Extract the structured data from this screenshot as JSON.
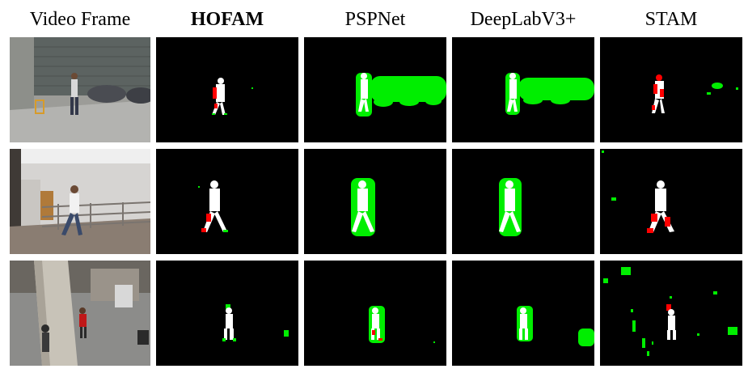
{
  "headers": {
    "video_frame": "Video Frame",
    "hofam": "HOFAM",
    "pspnet": "PSPNet",
    "deeplab": "DeepLabV3+",
    "stam": "STAM"
  },
  "colors": {
    "background": "#000000",
    "correct": "#ffffff",
    "missed": "#ff0000",
    "false_positive": "#00ee00"
  },
  "icons": {
    "video_frame": "photo-thumbnail",
    "segmentation_mask": "mask-image"
  }
}
